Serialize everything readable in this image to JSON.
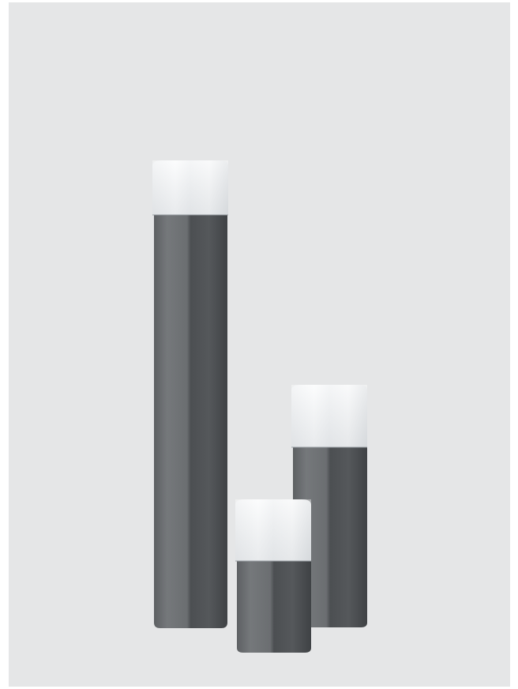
{
  "image": {
    "subject": "three-square-bollard-lights",
    "colors": {
      "background": "#e5e6e7",
      "body_light": "#6f7275",
      "body_mid": "#5a5d60",
      "body_dark": "#45484b",
      "diffuser_light": "#f7f8f9",
      "diffuser_shade": "#d9dcdf"
    }
  }
}
